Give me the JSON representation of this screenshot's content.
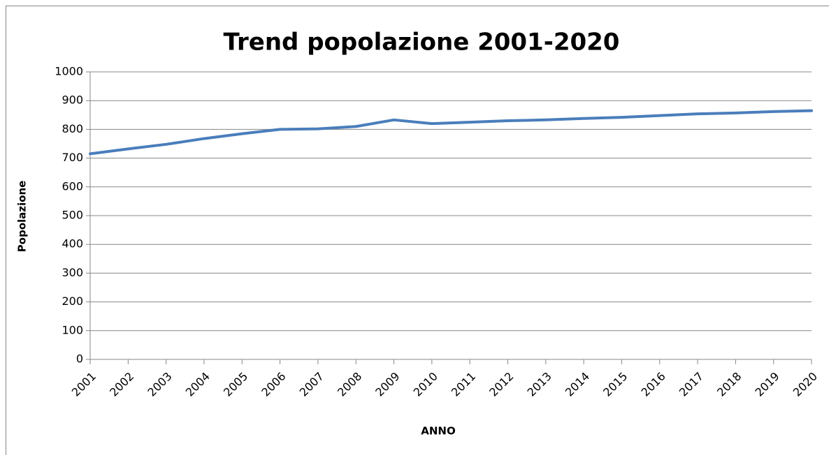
{
  "chart_data": {
    "type": "line",
    "title": "Trend popolazione 2001-2020",
    "x_label": "ANNO",
    "y_label": "Popolazione",
    "categories": [
      "2001",
      "2002",
      "2003",
      "2004",
      "2005",
      "2006",
      "2007",
      "2008",
      "2009",
      "2010",
      "2011",
      "2012",
      "2013",
      "2014",
      "2015",
      "2016",
      "2017",
      "2018",
      "2019",
      "2020"
    ],
    "series": [
      {
        "name": "Popolazione",
        "color": "#4a7ebb",
        "values": [
          715,
          732,
          748,
          768,
          785,
          800,
          802,
          810,
          833,
          820,
          825,
          830,
          833,
          838,
          842,
          848,
          854,
          857,
          862,
          865
        ]
      }
    ],
    "ylim": [
      0,
      1000
    ],
    "yticks": [
      0,
      100,
      200,
      300,
      400,
      500,
      600,
      700,
      800,
      900,
      1000
    ],
    "grid": true
  }
}
